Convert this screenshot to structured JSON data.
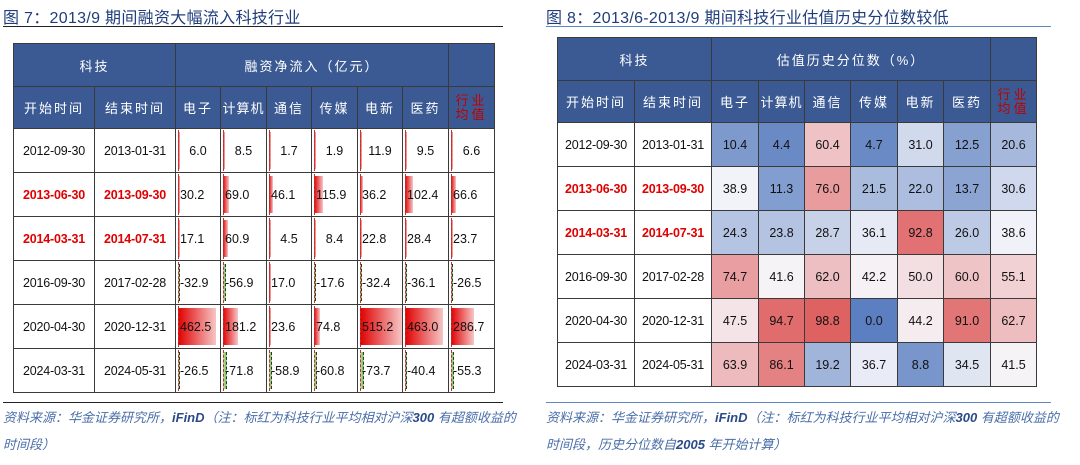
{
  "left": {
    "fig_label": "图 7：",
    "fig_title_num": "2013/9",
    "fig_title_text": " 期间融资大幅流入科技行业",
    "header": {
      "group_left": "科技",
      "group_right": "融资净流入（亿元）",
      "start": "开始时间",
      "end": "结束时间",
      "industries": [
        "电子",
        "计算机",
        "通信",
        "传媒",
        "电新",
        "医药"
      ],
      "avg_line1": "行业",
      "avg_line2": "均值"
    },
    "rows": [
      {
        "start": "2012-09-30",
        "end": "2013-01-31",
        "highlight": false,
        "values": [
          "6.0",
          "8.5",
          "1.7",
          "1.9",
          "11.9",
          "9.5",
          "6.6"
        ]
      },
      {
        "start": "2013-06-30",
        "end": "2013-09-30",
        "highlight": true,
        "values": [
          "30.2",
          "69.0",
          "46.1",
          "115.9",
          "36.2",
          "102.4",
          "66.6"
        ]
      },
      {
        "start": "2014-03-31",
        "end": "2014-07-31",
        "highlight": true,
        "values": [
          "17.1",
          "60.9",
          "4.5",
          "8.4",
          "22.8",
          "28.4",
          "23.7"
        ]
      },
      {
        "start": "2016-09-30",
        "end": "2017-02-28",
        "highlight": false,
        "values": [
          "-32.9",
          "-56.9",
          "17.0",
          "-17.6",
          "-32.4",
          "-36.1",
          "-26.5"
        ]
      },
      {
        "start": "2020-04-30",
        "end": "2020-12-31",
        "highlight": false,
        "values": [
          "462.5",
          "181.2",
          "23.6",
          "74.8",
          "515.2",
          "463.0",
          "286.7"
        ]
      },
      {
        "start": "2024-03-31",
        "end": "2024-05-31",
        "highlight": false,
        "values": [
          "-26.5",
          "-71.8",
          "-58.9",
          "-60.8",
          "-73.7",
          "-40.4",
          "-55.3"
        ]
      }
    ],
    "source_part1": "资料来源：华金证券研究所，",
    "source_en": "iFinD",
    "source_part2": "（注：标红为科技行业平均相对沪深",
    "source_num": "300",
    "source_part3": " 有超额收益的时间段）"
  },
  "right": {
    "fig_label": "图 8：",
    "fig_title_num": "2013/6-2013/9",
    "fig_title_text": " 期间科技行业估值历史分位数较低",
    "header": {
      "group_left": "科技",
      "group_right": "估值历史分位数（%）",
      "start": "开始时间",
      "end": "结束时间",
      "industries": [
        "电子",
        "计算机",
        "通信",
        "传媒",
        "电新",
        "医药"
      ],
      "avg_line1": "行业",
      "avg_line2": "均值"
    },
    "rows": [
      {
        "start": "2012-09-30",
        "end": "2013-01-31",
        "highlight": false,
        "values": [
          "10.4",
          "4.4",
          "60.4",
          "4.7",
          "31.0",
          "12.5",
          "20.6"
        ]
      },
      {
        "start": "2013-06-30",
        "end": "2013-09-30",
        "highlight": true,
        "values": [
          "38.9",
          "11.3",
          "76.0",
          "21.5",
          "22.0",
          "13.7",
          "30.6"
        ]
      },
      {
        "start": "2014-03-31",
        "end": "2014-07-31",
        "highlight": true,
        "values": [
          "24.3",
          "23.8",
          "28.7",
          "36.1",
          "92.8",
          "26.0",
          "38.6"
        ]
      },
      {
        "start": "2016-09-30",
        "end": "2017-02-28",
        "highlight": false,
        "values": [
          "74.7",
          "41.6",
          "62.0",
          "42.2",
          "50.0",
          "60.0",
          "55.1"
        ]
      },
      {
        "start": "2020-04-30",
        "end": "2020-12-31",
        "highlight": false,
        "values": [
          "47.5",
          "94.7",
          "98.8",
          "0.0",
          "44.2",
          "91.0",
          "62.7"
        ]
      },
      {
        "start": "2024-03-31",
        "end": "2024-05-31",
        "highlight": false,
        "values": [
          "63.9",
          "86.1",
          "19.2",
          "36.7",
          "8.8",
          "34.5",
          "41.5"
        ]
      }
    ],
    "source_part1": "资料来源：华金证券研究所，",
    "source_en": "iFinD",
    "source_part2": "（注：标红为科技行业平均相对沪深",
    "source_num": "300",
    "source_part3": " 有超额收益的时间段，历史分位数自",
    "source_num2": "2005",
    "source_part4": " 年开始计算）"
  },
  "colors": {
    "header_bg": "#3b5a93",
    "highlight_red": "#e00000",
    "avg_header_red": "#c00000",
    "heat_low": "#5b7fc0",
    "heat_mid": "#f7f7fb",
    "heat_high": "#de5f5f",
    "bar_positive": "#e00000",
    "bar_negative": "#7fbf5a",
    "source_text": "#4a6ea8"
  }
}
